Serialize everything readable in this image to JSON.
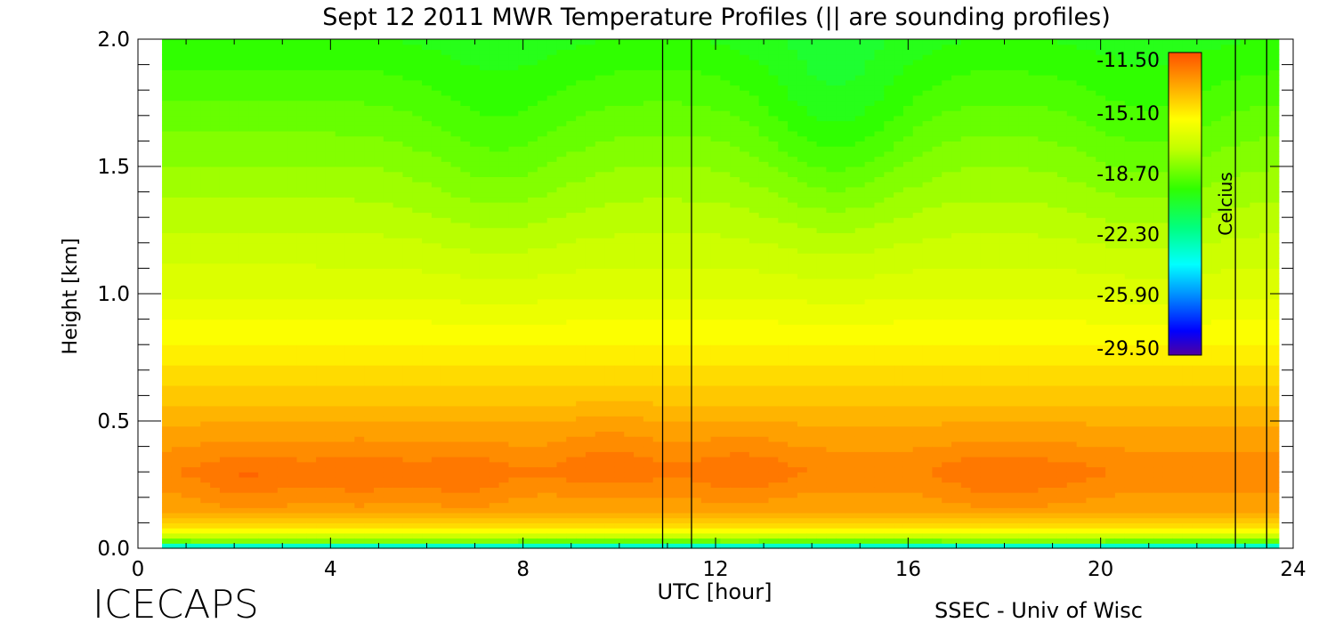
{
  "chart_data": {
    "type": "heatmap",
    "title": "Sept 12 2011 MWR Temperature Profiles (|| are sounding profiles)",
    "xlabel": "UTC [hour]",
    "ylabel": "Height [km]",
    "xlim": [
      0,
      24
    ],
    "ylim": [
      0,
      2.0
    ],
    "x_ticks": [
      "0",
      "4",
      "8",
      "12",
      "16",
      "20",
      "24"
    ],
    "y_ticks": [
      "0.0",
      "0.5",
      "1.0",
      "1.5",
      "2.0"
    ],
    "data_x_range": [
      0.5,
      23.7
    ],
    "sounding_profiles_utc": [
      10.9,
      11.5,
      22.8,
      23.45
    ],
    "colorbar": {
      "label": "Celcius",
      "min": -29.5,
      "max": -11.5,
      "tick_labels": [
        "-11.50",
        "-15.10",
        "-18.70",
        "-22.30",
        "-25.90",
        "-29.50"
      ]
    },
    "vertical_profile_temperature_c": [
      {
        "height_km": 0.0,
        "t": -25.5
      },
      {
        "height_km": 0.03,
        "t": -18.5
      },
      {
        "height_km": 0.08,
        "t": -15.0
      },
      {
        "height_km": 0.15,
        "t": -13.5
      },
      {
        "height_km": 0.3,
        "t": -12.7
      },
      {
        "height_km": 0.5,
        "t": -13.6
      },
      {
        "height_km": 0.7,
        "t": -14.8
      },
      {
        "height_km": 1.0,
        "t": -16.3
      },
      {
        "height_km": 1.5,
        "t": -18.0
      },
      {
        "height_km": 2.0,
        "t": -19.8
      }
    ],
    "warm_core_anomalies": [
      {
        "utc": 2.3,
        "height_km": 0.26,
        "dt": 0.6
      },
      {
        "utc": 4.6,
        "height_km": 0.28,
        "dt": 0.5
      },
      {
        "utc": 6.8,
        "height_km": 0.26,
        "dt": 0.5
      },
      {
        "utc": 9.8,
        "height_km": 0.35,
        "dt": 0.5
      },
      {
        "utc": 12.5,
        "height_km": 0.3,
        "dt": 0.5
      },
      {
        "utc": 17.7,
        "height_km": 0.26,
        "dt": 0.5
      },
      {
        "utc": 19.2,
        "height_km": 0.25,
        "dt": 0.3
      }
    ],
    "cold_upper_anomalies": [
      {
        "utc": 14.5,
        "height_km": 1.7,
        "dt": -1.2
      },
      {
        "utc": 7.5,
        "height_km": 1.6,
        "dt": -0.7
      },
      {
        "utc": 21.0,
        "height_km": 1.6,
        "dt": -0.6
      }
    ]
  },
  "footer": {
    "left": "ICECAPS",
    "right": "SSEC - Univ of Wisc"
  }
}
